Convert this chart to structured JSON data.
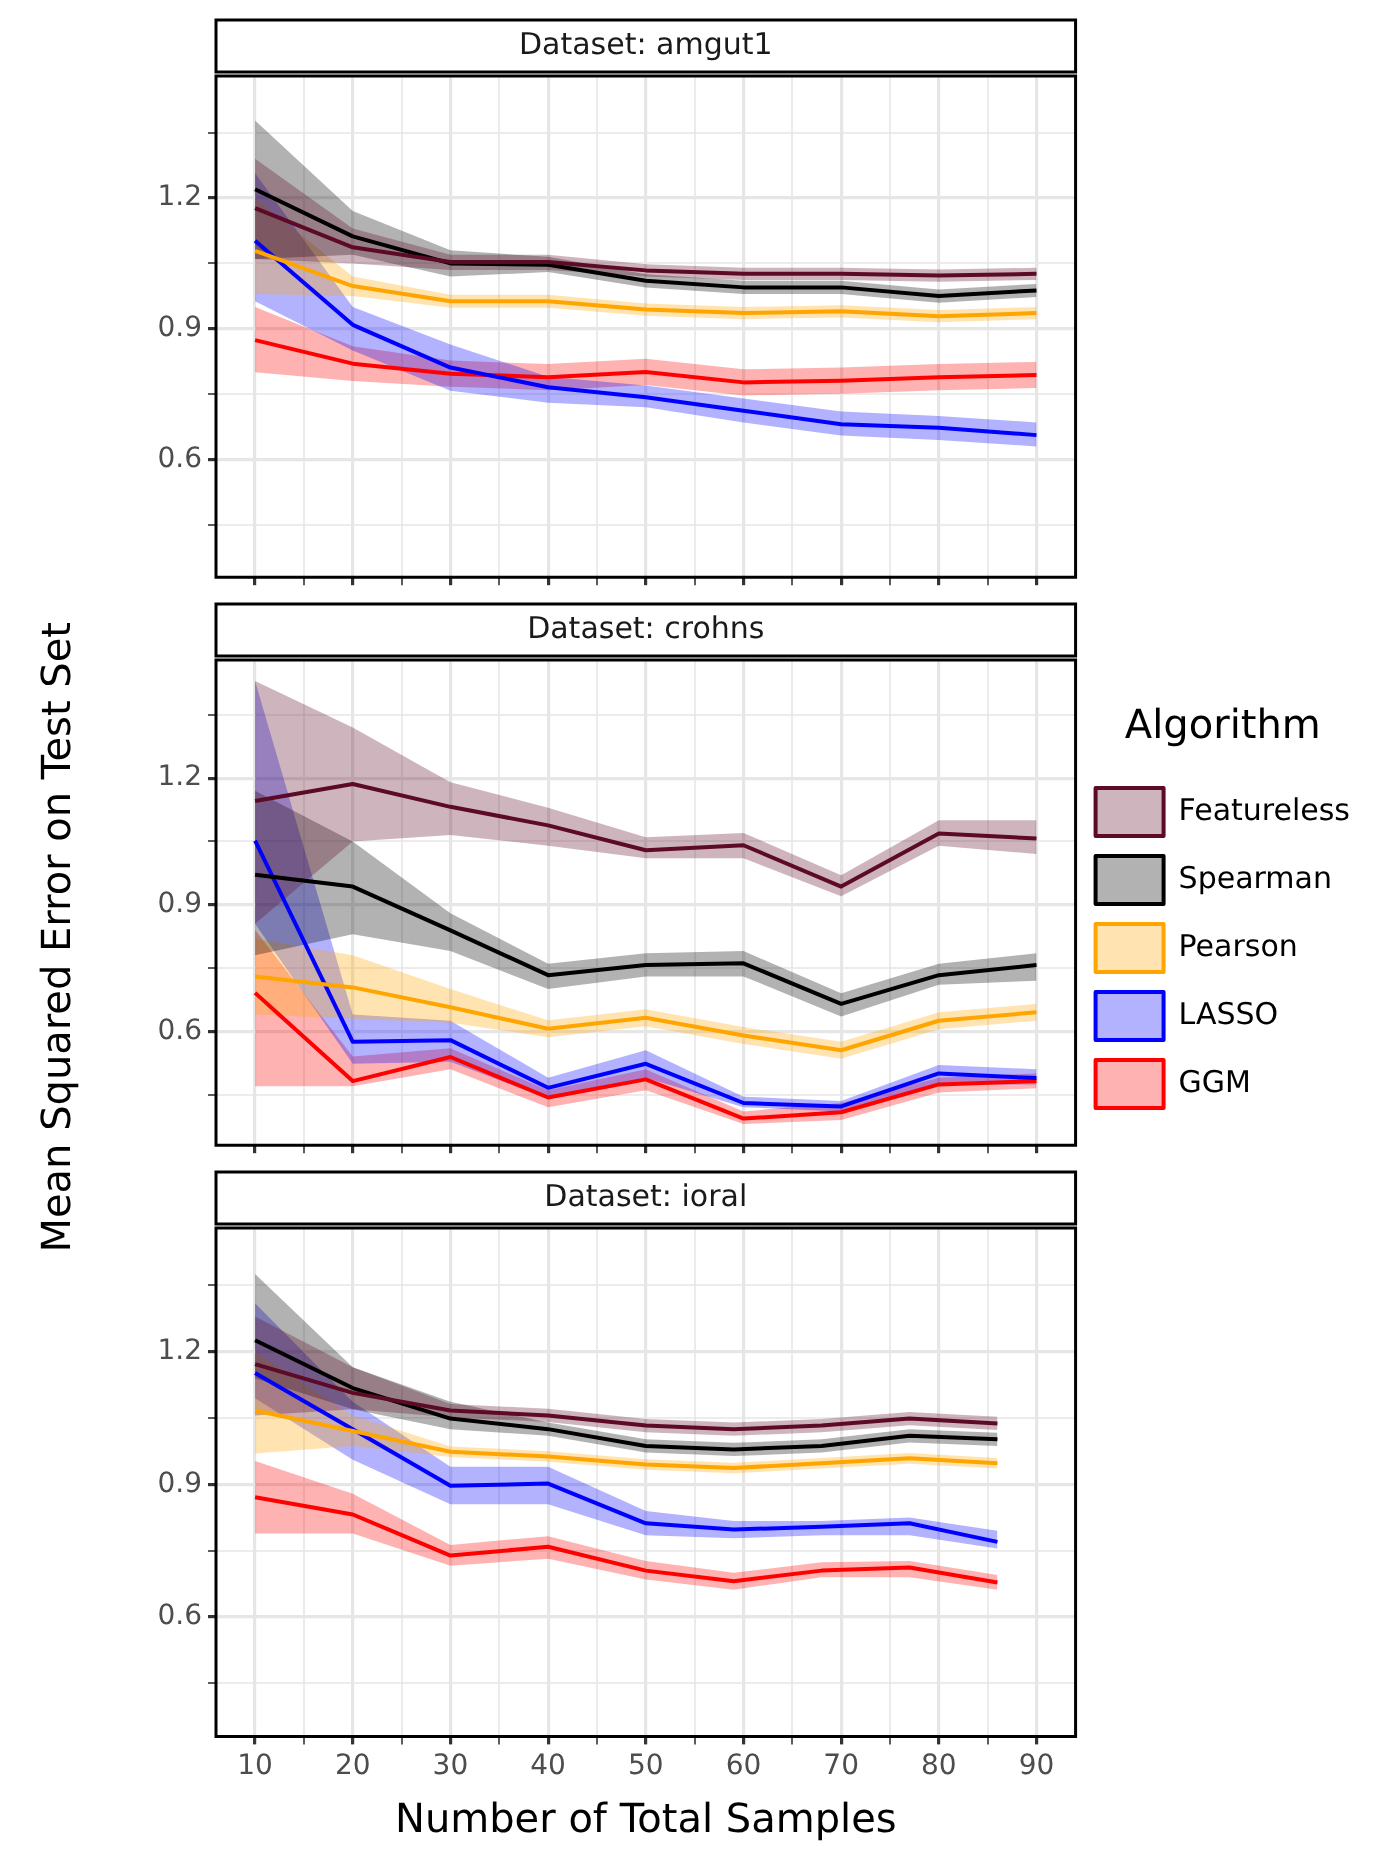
{
  "chart_data": [
    {
      "type": "line",
      "title": "Dataset: amgut1",
      "x": [
        10,
        20,
        30,
        40,
        50,
        60,
        70,
        80,
        90
      ],
      "xlim": [
        6,
        94
      ],
      "ylim": [
        0.33,
        1.48
      ],
      "xticks": [
        10,
        {
          "value": 15,
          "label": null
        },
        20,
        {
          "value": 25,
          "label": null
        },
        30,
        {
          "value": 35,
          "label": null
        },
        40,
        {
          "value": 45,
          "label": null
        },
        50,
        {
          "value": 55,
          "label": null
        },
        60,
        {
          "value": 65,
          "label": null
        },
        70,
        {
          "value": 75,
          "label": null
        },
        80,
        {
          "value": 85,
          "label": null
        },
        90
      ],
      "yticks": [
        {
          "value": 0.45,
          "label": null
        },
        0.6,
        {
          "value": 0.75,
          "label": null
        },
        0.9,
        {
          "value": 1.05,
          "label": null
        },
        1.2,
        {
          "value": 1.35,
          "label": null
        }
      ],
      "grid": true,
      "marker": "none",
      "tick_labels": "y",
      "series": [
        {
          "color": "#5c0a25",
          "values": [
            1.177,
            1.087,
            1.053,
            1.053,
            1.034,
            1.026,
            1.026,
            1.022,
            1.026
          ],
          "lower": [
            1.06,
            1.05,
            1.035,
            1.035,
            1.02,
            1.012,
            1.012,
            1.008,
            1.012
          ],
          "upper": [
            1.29,
            1.13,
            1.07,
            1.07,
            1.048,
            1.04,
            1.04,
            1.036,
            1.04
          ]
        },
        {
          "color": "#000000",
          "values": [
            1.22,
            1.112,
            1.05,
            1.047,
            1.01,
            0.995,
            0.995,
            0.975,
            0.988
          ],
          "lower": [
            1.06,
            1.07,
            1.02,
            1.03,
            0.995,
            0.98,
            0.98,
            0.96,
            0.973
          ],
          "upper": [
            1.378,
            1.17,
            1.08,
            1.065,
            1.025,
            1.01,
            1.01,
            0.99,
            1.003
          ]
        },
        {
          "color": "#ffa500",
          "values": [
            1.079,
            0.998,
            0.963,
            0.963,
            0.944,
            0.936,
            0.94,
            0.929,
            0.936
          ],
          "lower": [
            0.98,
            0.975,
            0.948,
            0.948,
            0.93,
            0.922,
            0.926,
            0.915,
            0.922
          ],
          "upper": [
            1.2,
            1.02,
            0.978,
            0.978,
            0.958,
            0.95,
            0.954,
            0.943,
            0.95
          ]
        },
        {
          "color": "#0000ff",
          "values": [
            1.102,
            0.909,
            0.811,
            0.766,
            0.743,
            0.712,
            0.681,
            0.673,
            0.656
          ],
          "lower": [
            0.963,
            0.85,
            0.758,
            0.73,
            0.72,
            0.685,
            0.655,
            0.645,
            0.63
          ],
          "upper": [
            1.257,
            0.95,
            0.864,
            0.79,
            0.77,
            0.74,
            0.71,
            0.7,
            0.685
          ]
        },
        {
          "color": "#ff0000",
          "values": [
            0.874,
            0.82,
            0.797,
            0.789,
            0.801,
            0.777,
            0.781,
            0.789,
            0.794
          ],
          "lower": [
            0.8,
            0.78,
            0.767,
            0.759,
            0.771,
            0.747,
            0.751,
            0.759,
            0.764
          ],
          "upper": [
            0.95,
            0.86,
            0.827,
            0.819,
            0.831,
            0.807,
            0.811,
            0.819,
            0.824
          ]
        }
      ]
    },
    {
      "type": "line",
      "title": "Dataset: crohns",
      "x": [
        10,
        20,
        30,
        40,
        50,
        60,
        70,
        80,
        90
      ],
      "xlim": [
        6,
        94
      ],
      "ylim": [
        0.33,
        1.48
      ],
      "xticks": [
        10,
        {
          "value": 15,
          "label": null
        },
        20,
        {
          "value": 25,
          "label": null
        },
        30,
        {
          "value": 35,
          "label": null
        },
        40,
        {
          "value": 45,
          "label": null
        },
        50,
        {
          "value": 55,
          "label": null
        },
        60,
        {
          "value": 65,
          "label": null
        },
        70,
        {
          "value": 75,
          "label": null
        },
        80,
        {
          "value": 85,
          "label": null
        },
        90
      ],
      "yticks": [
        {
          "value": 0.45,
          "label": null
        },
        0.6,
        {
          "value": 0.75,
          "label": null
        },
        0.9,
        {
          "value": 1.05,
          "label": null
        },
        1.2,
        {
          "value": 1.35,
          "label": null
        }
      ],
      "ylabel": "Mean Squared Error on Test Set",
      "legend": "right",
      "legend_title": "Algorithm",
      "grid": true,
      "marker": "none",
      "tick_labels": "y",
      "series": [
        {
          "name": "Featureless",
          "color": "#5c0a25",
          "values": [
            1.146,
            1.186,
            1.132,
            1.088,
            1.029,
            1.041,
            0.943,
            1.069,
            1.057
          ],
          "lower": [
            0.855,
            1.05,
            1.065,
            1.04,
            1.01,
            1.01,
            0.92,
            1.04,
            1.02
          ],
          "upper": [
            1.43,
            1.32,
            1.19,
            1.13,
            1.06,
            1.07,
            0.97,
            1.1,
            1.1
          ]
        },
        {
          "name": "Spearman",
          "color": "#000000",
          "values": [
            0.971,
            0.943,
            0.839,
            0.733,
            0.757,
            0.761,
            0.665,
            0.733,
            0.757
          ],
          "lower": [
            0.78,
            0.83,
            0.79,
            0.7,
            0.73,
            0.73,
            0.635,
            0.71,
            0.72
          ],
          "upper": [
            1.17,
            1.05,
            0.88,
            0.76,
            0.785,
            0.79,
            0.69,
            0.76,
            0.785
          ]
        },
        {
          "name": "Pearson",
          "color": "#ffa500",
          "values": [
            0.73,
            0.704,
            0.657,
            0.606,
            0.632,
            0.59,
            0.555,
            0.625,
            0.645
          ],
          "lower": [
            0.64,
            0.63,
            0.62,
            0.586,
            0.612,
            0.57,
            0.535,
            0.605,
            0.625
          ],
          "upper": [
            0.82,
            0.78,
            0.7,
            0.626,
            0.652,
            0.61,
            0.575,
            0.645,
            0.665
          ]
        },
        {
          "name": "LASSO",
          "color": "#0000ff",
          "values": [
            1.052,
            0.575,
            0.579,
            0.466,
            0.523,
            0.43,
            0.422,
            0.5,
            0.489
          ],
          "lower": [
            0.855,
            0.523,
            0.528,
            0.44,
            0.49,
            0.42,
            0.41,
            0.474,
            0.474
          ],
          "upper": [
            1.43,
            0.64,
            0.625,
            0.49,
            0.555,
            0.445,
            0.435,
            0.52,
            0.51
          ]
        },
        {
          "name": "GGM",
          "color": "#ff0000",
          "values": [
            0.691,
            0.482,
            0.539,
            0.443,
            0.486,
            0.393,
            0.408,
            0.474,
            0.482
          ],
          "lower": [
            0.47,
            0.47,
            0.51,
            0.42,
            0.46,
            0.38,
            0.39,
            0.455,
            0.465
          ],
          "upper": [
            0.84,
            0.54,
            0.56,
            0.46,
            0.51,
            0.41,
            0.43,
            0.49,
            0.5
          ]
        }
      ]
    },
    {
      "type": "line",
      "title": "Dataset: ioral",
      "x": [
        10,
        20,
        30,
        40,
        50,
        59,
        68,
        77,
        86
      ],
      "xlim": [
        6,
        94
      ],
      "ylim": [
        0.33,
        1.48
      ],
      "xticks": [
        10,
        {
          "value": 15,
          "label": null
        },
        20,
        {
          "value": 25,
          "label": null
        },
        30,
        {
          "value": 35,
          "label": null
        },
        40,
        {
          "value": 45,
          "label": null
        },
        50,
        {
          "value": 55,
          "label": null
        },
        60,
        {
          "value": 65,
          "label": null
        },
        70,
        {
          "value": 75,
          "label": null
        },
        80,
        {
          "value": 85,
          "label": null
        },
        90
      ],
      "yticks": [
        {
          "value": 0.45,
          "label": null
        },
        0.6,
        {
          "value": 0.75,
          "label": null
        },
        0.9,
        {
          "value": 1.05,
          "label": null
        },
        1.2,
        {
          "value": 1.35,
          "label": null
        }
      ],
      "xlabel": "Number of Total Samples",
      "grid": true,
      "marker": "none",
      "series": [
        {
          "color": "#5c0a25",
          "values": [
            1.172,
            1.107,
            1.067,
            1.056,
            1.033,
            1.025,
            1.033,
            1.049,
            1.038
          ],
          "lower": [
            1.056,
            1.07,
            1.052,
            1.041,
            1.018,
            1.01,
            1.018,
            1.034,
            1.023
          ],
          "upper": [
            1.28,
            1.165,
            1.082,
            1.071,
            1.048,
            1.04,
            1.048,
            1.064,
            1.053
          ]
        },
        {
          "color": "#000000",
          "values": [
            1.226,
            1.118,
            1.049,
            1.025,
            0.987,
            0.979,
            0.987,
            1.01,
            1.002
          ],
          "lower": [
            1.14,
            1.07,
            1.025,
            1.01,
            0.972,
            0.964,
            0.972,
            0.995,
            0.987
          ],
          "upper": [
            1.376,
            1.165,
            1.087,
            1.04,
            1.002,
            0.994,
            1.002,
            1.025,
            1.017
          ]
        },
        {
          "color": "#ffa500",
          "values": [
            1.067,
            1.021,
            0.974,
            0.963,
            0.945,
            0.937,
            0.948,
            0.959,
            0.948
          ],
          "lower": [
            0.97,
            0.987,
            0.962,
            0.951,
            0.933,
            0.925,
            0.936,
            0.947,
            0.936
          ],
          "upper": [
            1.2,
            1.056,
            0.986,
            0.975,
            0.957,
            0.949,
            0.96,
            0.971,
            0.96
          ]
        },
        {
          "color": "#0000ff",
          "values": [
            1.152,
            1.025,
            0.897,
            0.902,
            0.812,
            0.798,
            0.804,
            0.812,
            0.77
          ],
          "lower": [
            1.095,
            0.956,
            0.855,
            0.855,
            0.785,
            0.778,
            0.785,
            0.785,
            0.755
          ],
          "upper": [
            1.31,
            1.087,
            0.94,
            0.94,
            0.84,
            0.817,
            0.817,
            0.825,
            0.795
          ]
        },
        {
          "color": "#ff0000",
          "values": [
            0.871,
            0.832,
            0.739,
            0.759,
            0.705,
            0.681,
            0.705,
            0.712,
            0.678
          ],
          "lower": [
            0.789,
            0.789,
            0.716,
            0.732,
            0.685,
            0.662,
            0.69,
            0.69,
            0.662
          ],
          "upper": [
            0.953,
            0.879,
            0.763,
            0.783,
            0.727,
            0.7,
            0.724,
            0.727,
            0.695
          ]
        }
      ]
    }
  ]
}
